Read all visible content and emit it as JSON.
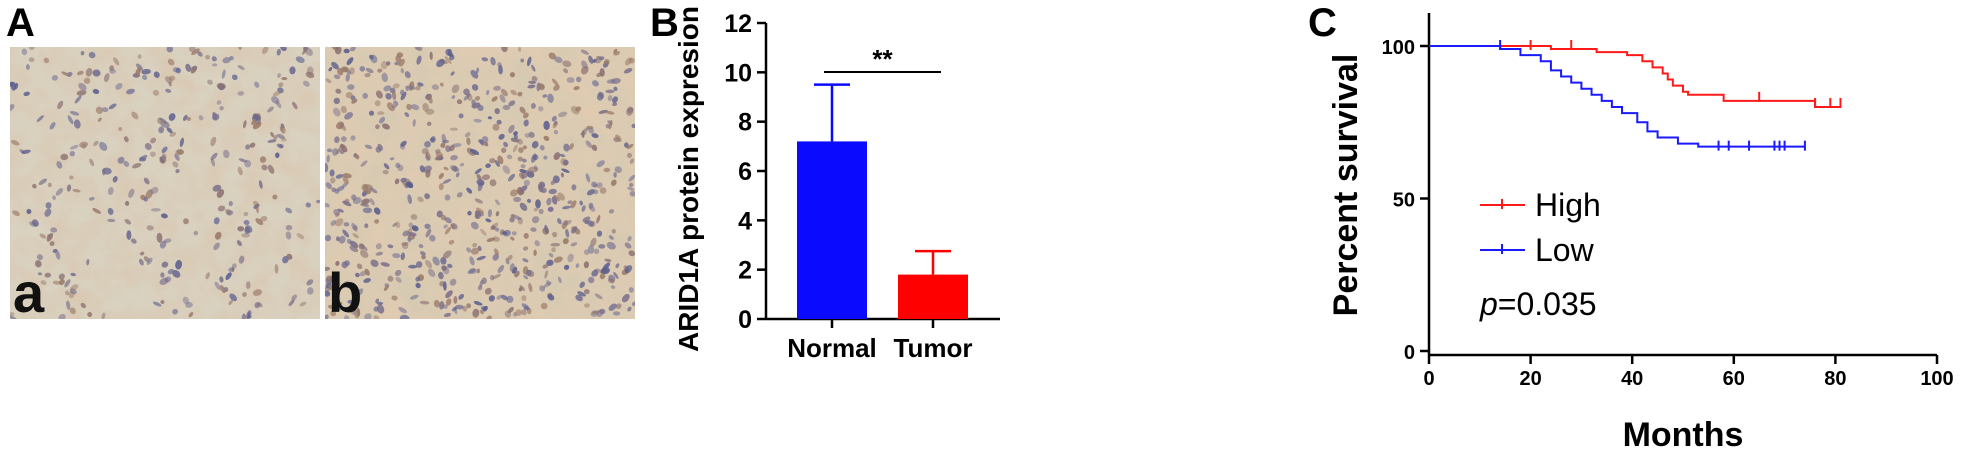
{
  "panels": {
    "A": {
      "letter": "A",
      "sub_labels": [
        "a",
        "b"
      ],
      "colors": {
        "tissue_bg": "#d8d0bf",
        "stain_brown": "#b08a66",
        "nucleus_blue": "#5a5e8e"
      }
    },
    "B": {
      "letter": "B"
    },
    "C": {
      "letter": "C"
    }
  },
  "chart_data": [
    {
      "id": "B",
      "type": "bar",
      "categories": [
        "Normal",
        "Tumor"
      ],
      "values": [
        7.2,
        1.8
      ],
      "errors": [
        2.3,
        0.95
      ],
      "colors": [
        "#0a0aff",
        "#ff0000"
      ],
      "ylabel": "ARID1A protein expresion",
      "xlabel": "",
      "ylim": [
        0,
        12
      ],
      "yticks": [
        0,
        2,
        4,
        6,
        8,
        10,
        12
      ],
      "annotation": "**",
      "grid": false
    },
    {
      "id": "C",
      "type": "line",
      "subtype": "kaplan-meier",
      "xlabel": "Months",
      "ylabel": "Percent survival",
      "xlim": [
        0,
        100
      ],
      "ylim": [
        0,
        100
      ],
      "xticks": [
        0,
        20,
        40,
        60,
        80,
        100
      ],
      "yticks": [
        0,
        50,
        100
      ],
      "legend_position": "center-left",
      "annotation_prefix": "p",
      "annotation_value": "=0.035",
      "grid": false,
      "series": [
        {
          "name": "High",
          "color": "#ff1a1a",
          "steps": [
            [
              0,
              100
            ],
            [
              24,
              99
            ],
            [
              33,
              98
            ],
            [
              39,
              97
            ],
            [
              42,
              95
            ],
            [
              44,
              93
            ],
            [
              46,
              91
            ],
            [
              47,
              89
            ],
            [
              48,
              87
            ],
            [
              50,
              85
            ],
            [
              51,
              84
            ],
            [
              58,
              82
            ],
            [
              76,
              80
            ],
            [
              81,
              80
            ]
          ],
          "censors": [
            [
              20,
              100
            ],
            [
              28,
              100
            ],
            [
              65,
              83
            ],
            [
              76,
              81
            ],
            [
              79,
              81
            ],
            [
              81,
              81
            ]
          ]
        },
        {
          "name": "Low",
          "color": "#1a1aff",
          "steps": [
            [
              0,
              100
            ],
            [
              14,
              99
            ],
            [
              18,
              97
            ],
            [
              22,
              95
            ],
            [
              24,
              92
            ],
            [
              26,
              90
            ],
            [
              28,
              88
            ],
            [
              30,
              86
            ],
            [
              32,
              84
            ],
            [
              34,
              82
            ],
            [
              36,
              80
            ],
            [
              38,
              78
            ],
            [
              41,
              75
            ],
            [
              43,
              72
            ],
            [
              45,
              70
            ],
            [
              49,
              68
            ],
            [
              53,
              67
            ],
            [
              74,
              67
            ]
          ],
          "censors": [
            [
              14,
              100
            ],
            [
              57,
              67
            ],
            [
              59,
              67
            ],
            [
              63,
              67
            ],
            [
              68,
              67
            ],
            [
              69,
              67
            ],
            [
              70,
              67
            ],
            [
              74,
              67
            ]
          ]
        }
      ]
    }
  ]
}
